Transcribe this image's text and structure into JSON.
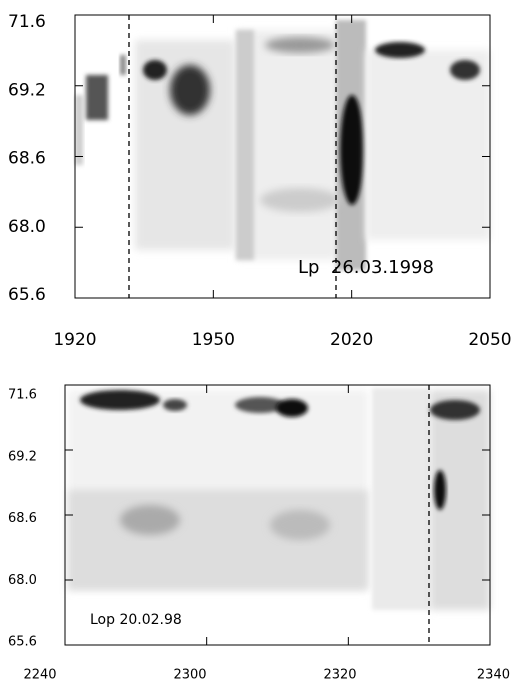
{
  "chart_data": [
    {
      "type": "heatmap",
      "y_labels": [
        "71.6",
        "69.2",
        "68.6",
        "68.0",
        "65.6"
      ],
      "x_labels": [
        "1920",
        "1950",
        "2020",
        "2050"
      ],
      "annotation": "Lp  26.03.1998"
    },
    {
      "type": "heatmap",
      "y_labels": [
        "71.6",
        "69.2",
        "68.6",
        "68.0",
        "65.6"
      ],
      "x_labels": [
        "2240",
        "2300",
        "2320",
        "2340"
      ],
      "annotation": "Lop 20.02.98"
    }
  ]
}
